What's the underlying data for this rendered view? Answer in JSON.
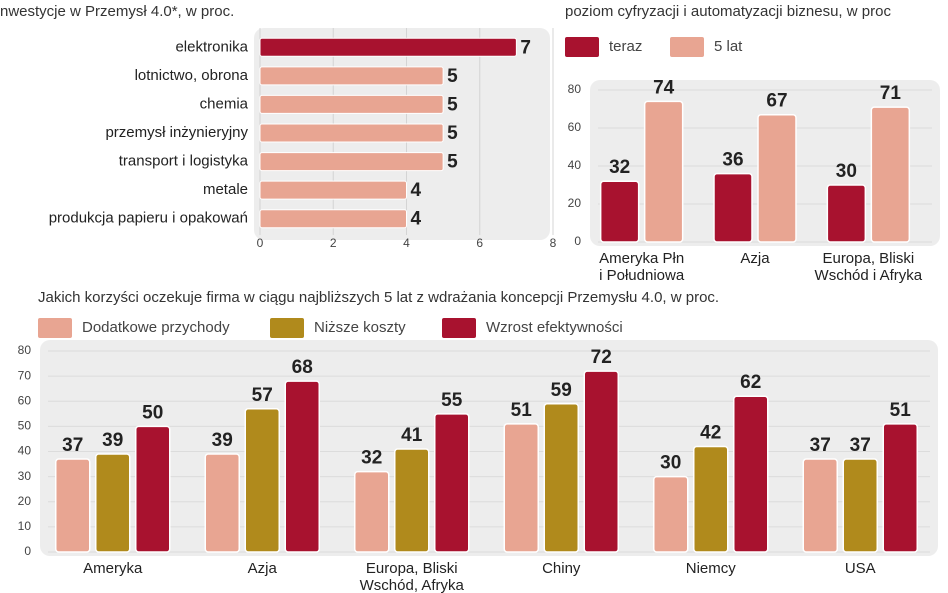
{
  "chart_data": [
    {
      "type": "bar",
      "orientation": "horizontal",
      "title": "nwestycje w Przemysł 4.0*, w proc.",
      "categories": [
        "elektronika",
        "lotnictwo, obrona",
        "chemia",
        "przemysł inżynieryjny",
        "transport i logistyka",
        "metale",
        "produkcja papieru i opakowań"
      ],
      "values": [
        7,
        5,
        5,
        5,
        5,
        4,
        4
      ],
      "colors": [
        "#a8122f",
        "#e8a592",
        "#e8a592",
        "#e8a592",
        "#e8a592",
        "#e8a592",
        "#e8a592"
      ],
      "xlim": [
        0,
        8
      ],
      "xticks": [
        0,
        2,
        4,
        6,
        8
      ],
      "grid": true
    },
    {
      "type": "bar",
      "title": "poziom cyfryzacji i automatyzacji biznesu, w proc",
      "categories": [
        "Ameryka Płn\ni Południowa",
        "Azja",
        "Europa, Bliski\nWschód i Afryka"
      ],
      "series": [
        {
          "name": "teraz",
          "color": "#a8122f",
          "values": [
            32,
            36,
            30
          ]
        },
        {
          "name": "5 lat",
          "color": "#e8a592",
          "values": [
            74,
            67,
            71
          ]
        }
      ],
      "ylim": [
        0,
        80
      ],
      "yticks": [
        0,
        20,
        40,
        60,
        80
      ],
      "grid": true
    },
    {
      "type": "bar",
      "title": "Jakich  korzyści oczekuje firma w ciągu najbliższych 5 lat z wdrażania koncepcji Przemysłu 4.0, w proc.",
      "categories": [
        "Ameryka",
        "Azja",
        "Europa, Bliski\nWschód, Afryka",
        "Chiny",
        "Niemcy",
        "USA"
      ],
      "series": [
        {
          "name": "Dodatkowe przychody",
          "color": "#e8a592",
          "values": [
            37,
            39,
            32,
            51,
            30,
            37
          ]
        },
        {
          "name": "Niższe koszty",
          "color": "#b08a1c",
          "values": [
            39,
            57,
            41,
            59,
            42,
            37
          ]
        },
        {
          "name": "Wzrost efektywności",
          "color": "#a8122f",
          "values": [
            50,
            68,
            55,
            72,
            62,
            51
          ]
        }
      ],
      "ylim": [
        0,
        80
      ],
      "yticks": [
        0,
        10,
        20,
        30,
        40,
        50,
        60,
        70,
        80
      ],
      "grid": true
    }
  ]
}
